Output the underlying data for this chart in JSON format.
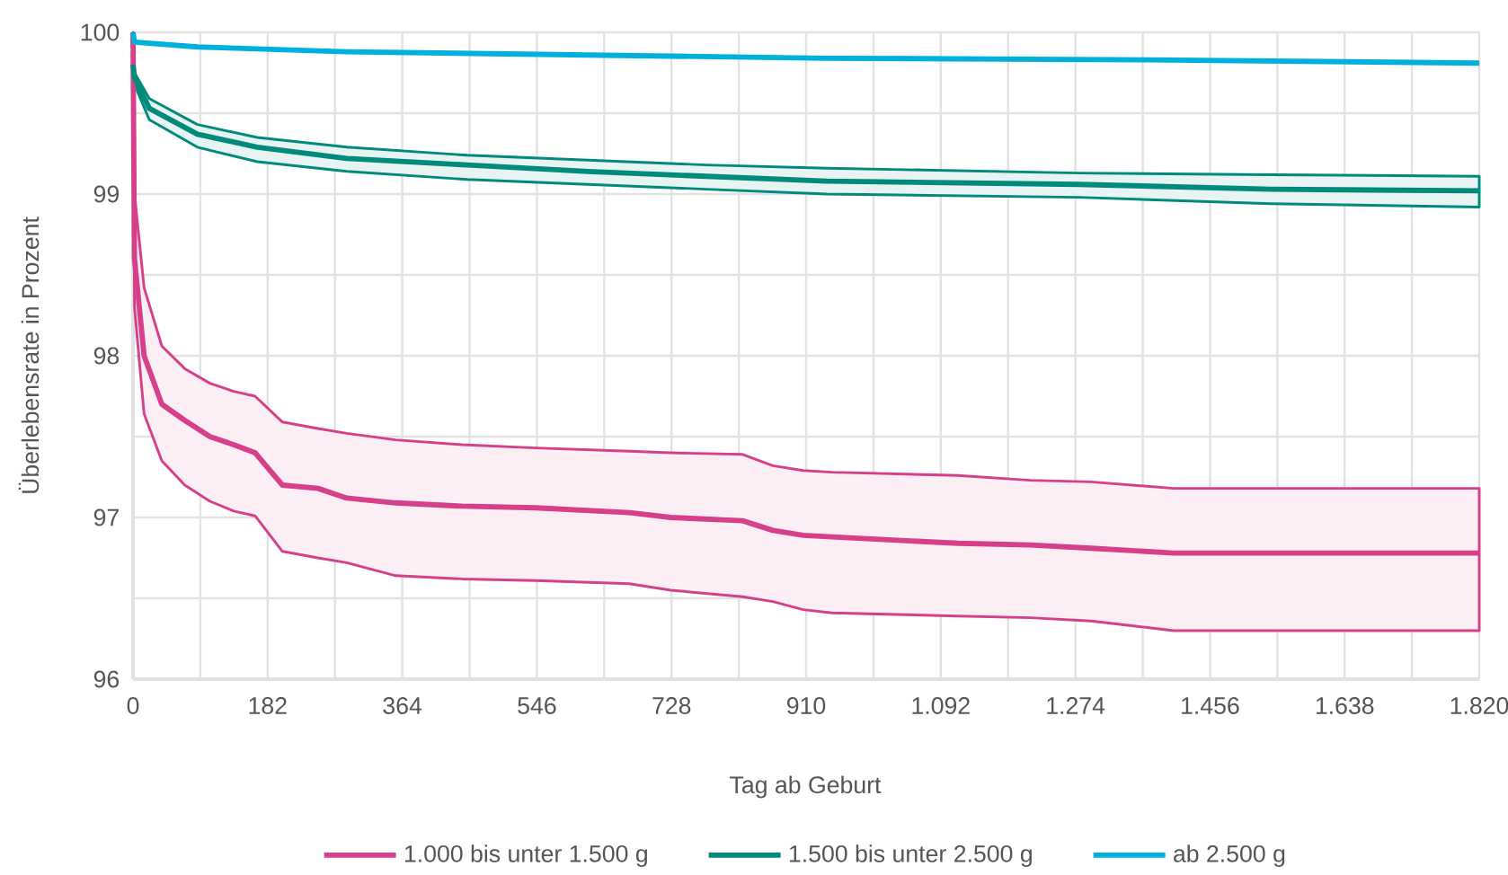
{
  "chart_data": {
    "type": "line",
    "xlabel": "Tag ab Geburt",
    "ylabel": "Überlebensrate in Prozent",
    "xlim": [
      0,
      1820
    ],
    "ylim": [
      96,
      100
    ],
    "xticks": [
      0,
      {
        "value": 91,
        "label": null
      },
      182,
      {
        "value": 273,
        "label": null
      },
      364,
      {
        "value": 455,
        "label": null
      },
      546,
      {
        "value": 637,
        "label": null
      },
      728,
      {
        "value": 819,
        "label": null
      },
      910,
      {
        "value": 1001,
        "label": null
      },
      {
        "value": 1092,
        "label": "1.092"
      },
      {
        "value": 1183,
        "label": null
      },
      {
        "value": 1274,
        "label": "1.274"
      },
      {
        "value": 1365,
        "label": null
      },
      {
        "value": 1456,
        "label": "1.456"
      },
      {
        "value": 1547,
        "label": null
      },
      {
        "value": 1638,
        "label": "1.638"
      },
      {
        "value": 1729,
        "label": null
      },
      {
        "value": 1820,
        "label": "1.820"
      }
    ],
    "yticks": [
      96,
      {
        "value": 96.5,
        "label": null
      },
      97,
      {
        "value": 97.5,
        "label": null
      },
      98,
      {
        "value": 98.5,
        "label": null
      },
      99,
      {
        "value": 99.5,
        "label": null
      },
      100
    ],
    "grid": true,
    "legend": "bottom",
    "marker": "none",
    "line_style": "solid",
    "series": [
      {
        "name": "1.000 bis unter 1.500 g",
        "color": "#d6408a",
        "x": [
          0,
          2,
          15,
          39,
          70,
          104,
          136,
          165,
          202,
          250,
          289,
          355,
          445,
          544,
          671,
          727,
          824,
          865,
          906,
          945,
          1115,
          1213,
          1295,
          1407,
          1820
        ],
        "values": [
          100,
          98.6,
          98.0,
          97.7,
          97.6,
          97.5,
          97.45,
          97.4,
          97.2,
          97.18,
          97.12,
          97.09,
          97.07,
          97.06,
          97.03,
          97.0,
          96.98,
          96.92,
          96.89,
          96.88,
          96.84,
          96.83,
          96.81,
          96.78,
          96.78
        ],
        "lower": [
          100,
          98.3,
          97.64,
          97.35,
          97.2,
          97.1,
          97.04,
          97.01,
          96.79,
          96.75,
          96.72,
          96.64,
          96.62,
          96.61,
          96.59,
          96.55,
          96.51,
          96.48,
          96.43,
          96.41,
          96.39,
          96.38,
          96.36,
          96.3,
          96.3
        ],
        "upper": [
          100,
          99.0,
          98.42,
          98.06,
          97.92,
          97.83,
          97.78,
          97.75,
          97.59,
          97.55,
          97.52,
          97.48,
          97.45,
          97.43,
          97.41,
          97.4,
          97.39,
          97.32,
          97.29,
          97.28,
          97.26,
          97.23,
          97.22,
          97.18,
          97.18
        ]
      },
      {
        "name": "1.500 bis unter 2.500 g",
        "color": "#008a7c",
        "x": [
          0,
          2,
          22,
          87,
          168,
          289,
          452,
          615,
          775,
          938,
          1278,
          1538,
          1820
        ],
        "values": [
          99.8,
          99.72,
          99.53,
          99.37,
          99.29,
          99.22,
          99.18,
          99.14,
          99.11,
          99.08,
          99.06,
          99.03,
          99.02
        ],
        "lower": [
          99.8,
          99.68,
          99.46,
          99.29,
          99.2,
          99.14,
          99.09,
          99.06,
          99.03,
          99.0,
          98.98,
          98.94,
          98.92
        ],
        "upper": [
          99.8,
          99.75,
          99.59,
          99.43,
          99.35,
          99.29,
          99.24,
          99.21,
          99.18,
          99.16,
          99.13,
          99.12,
          99.11
        ]
      },
      {
        "name": "ab 2.500 g",
        "color": "#00b0dc",
        "x": [
          0,
          2,
          87,
          289,
          615,
          938,
          1375,
          1820
        ],
        "values": [
          100,
          99.94,
          99.91,
          99.88,
          99.86,
          99.84,
          99.83,
          99.81
        ]
      }
    ]
  }
}
